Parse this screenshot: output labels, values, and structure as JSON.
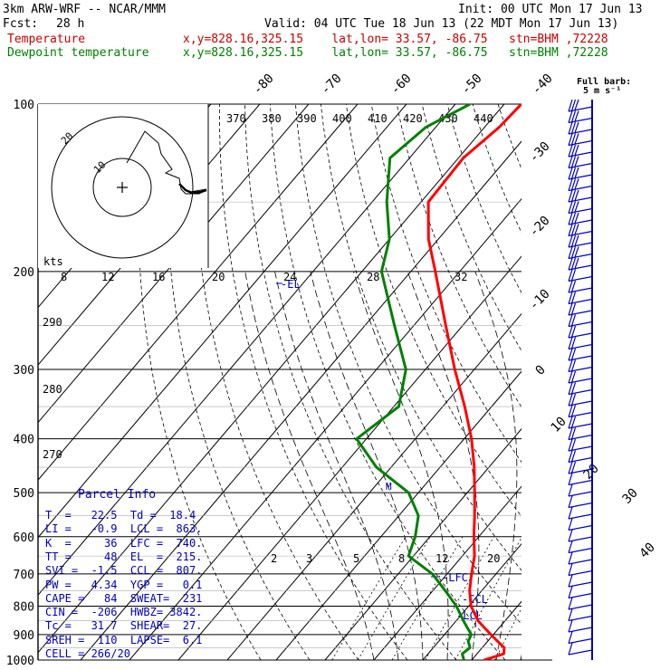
{
  "header": {
    "model_line": "3km ARW-WRF -- NCAR/MMM",
    "init_line": "Init: 00 UTC Mon 17 Jun 13",
    "fcst_label": "Fcst:",
    "fcst_value": "28 h",
    "valid_line": "Valid: 04 UTC Tue 18 Jun 13 (22 MDT Mon 17 Jun 13)",
    "temp_label": "Temperature",
    "temp_loc": "x,y=828.16,325.15    lat,lon= 33.57, -86.75   stn=BHM ,72228",
    "dew_label": "Dewpoint temperature",
    "dew_loc": "x,y=828.16,325.15    lat,lon= 33.57, -86.75   stn=BHM ,72228"
  },
  "colors": {
    "temperature": "#ff0000",
    "dewpoint": "#008000",
    "header_temp": "#cc0000",
    "header_dew": "#008000",
    "parcel_text": "#0000bb",
    "winds": "#0000bb"
  },
  "barb_legend": {
    "title": "Full barb:",
    "value": "5 m s⁻¹"
  },
  "hodograph": {
    "units": "kts",
    "ring_labels": [
      "10",
      "20"
    ]
  },
  "parcel_info": {
    "title": "Parcel Info",
    "rows": [
      "T  =   22.5  Td =  18.4",
      "LI =   -0.9  LCL =  863.",
      "K  =     36  LFC =  740.",
      "TT =     48  EL  =  215.",
      "SVI =  -1.5  CCL =  807.",
      "PW =   4.34  YGP =   0.1",
      "CAPE =   84  SWEAT=  231",
      "CIN =  -206  HWBZ= 3842.",
      "Tc =   31.7  SHEAR=  27.",
      "SREH =  110  LAPSE=  6.1",
      "CELL = 266/20"
    ]
  },
  "level_labels": {
    "el": "-EL",
    "lfc": "-LFC",
    "ccl": "-CCL",
    "lcl": "-LCL",
    "m": "M"
  },
  "chart_data": {
    "type": "line",
    "pressure_levels_hpa": [
      100,
      200,
      300,
      400,
      500,
      600,
      700,
      800,
      900,
      1000
    ],
    "isotherm_labels_top": [
      "-80",
      "-70",
      "-60",
      "-50",
      "-40"
    ],
    "isotherm_labels_right": [
      "-30",
      "-20",
      "-10",
      "0",
      "10",
      "20",
      "30",
      "40"
    ],
    "theta_labels": [
      "370",
      "380",
      "390",
      "400",
      "410",
      "420",
      "430",
      "440"
    ],
    "theta_labels_left": [
      "290",
      "280",
      "270"
    ],
    "mixing_ratio_labels": [
      "2",
      "3",
      "5",
      "8",
      "12",
      "20"
    ],
    "hodograph_speed_labels": [
      "8",
      "12",
      "16",
      "20",
      "24",
      "28",
      "32"
    ],
    "series": [
      {
        "name": "Temperature",
        "p": [
          1000,
          975,
          950,
          925,
          900,
          875,
          850,
          800,
          750,
          700,
          650,
          600,
          550,
          500,
          450,
          400,
          350,
          300,
          250,
          200,
          175,
          150,
          125,
          110,
          100
        ],
        "temp": [
          22.5,
          25.5,
          24.5,
          22.0,
          19.5,
          17.0,
          14.5,
          10.5,
          7.5,
          5.0,
          2.5,
          -1.0,
          -4.5,
          -8.5,
          -13.0,
          -18.5,
          -25.5,
          -34.0,
          -43.5,
          -55.0,
          -62.0,
          -68.5,
          -69.0,
          -67.0,
          -66.5
        ]
      },
      {
        "name": "Dewpoint temperature",
        "p": [
          1000,
          975,
          950,
          925,
          900,
          875,
          850,
          800,
          750,
          700,
          650,
          600,
          550,
          500,
          450,
          400,
          350,
          300,
          250,
          200,
          175,
          150,
          125,
          110,
          100
        ],
        "temp": [
          18.4,
          17.0,
          17.5,
          16.0,
          15.5,
          13.5,
          11.5,
          7.5,
          2.5,
          -3.0,
          -11.0,
          -13.0,
          -16.0,
          -22.0,
          -33.0,
          -42.0,
          -39.0,
          -44.0,
          -54.0,
          -66.0,
          -70.0,
          -77.0,
          -84.0,
          -82.0,
          -77.0
        ]
      }
    ]
  }
}
